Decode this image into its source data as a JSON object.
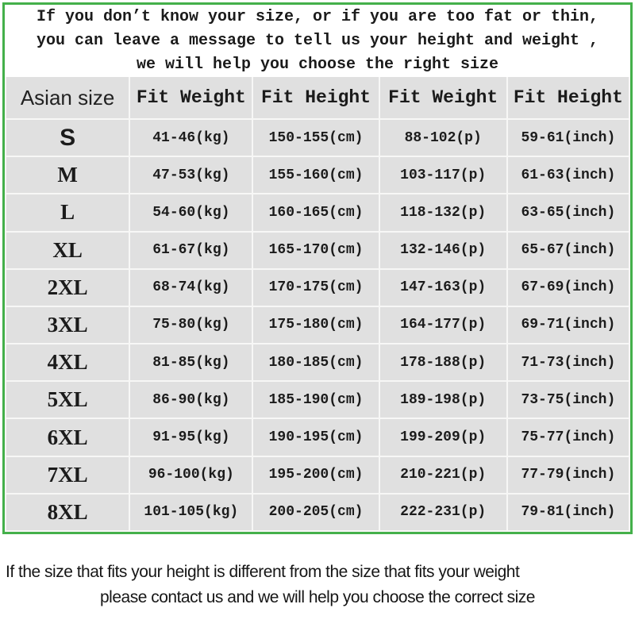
{
  "intro": {
    "lines": [
      "If you don’t know your size, or if you are too fat or thin,",
      "you can leave a message to tell us your height and weight ,",
      "we will help you choose the right size"
    ]
  },
  "chart_data": {
    "type": "table",
    "columns": [
      "Asian size",
      "Fit Weight",
      "Fit Height",
      "Fit Weight",
      "Fit Height"
    ],
    "rows": [
      [
        "S",
        "41-46(kg)",
        "150-155(cm)",
        "88-102(p)",
        "59-61(inch)"
      ],
      [
        "M",
        "47-53(kg)",
        "155-160(cm)",
        "103-117(p)",
        "61-63(inch)"
      ],
      [
        "L",
        "54-60(kg)",
        "160-165(cm)",
        "118-132(p)",
        "63-65(inch)"
      ],
      [
        "XL",
        "61-67(kg)",
        "165-170(cm)",
        "132-146(p)",
        "65-67(inch)"
      ],
      [
        "2XL",
        "68-74(kg)",
        "170-175(cm)",
        "147-163(p)",
        "67-69(inch)"
      ],
      [
        "3XL",
        "75-80(kg)",
        "175-180(cm)",
        "164-177(p)",
        "69-71(inch)"
      ],
      [
        "4XL",
        "81-85(kg)",
        "180-185(cm)",
        "178-188(p)",
        "71-73(inch)"
      ],
      [
        "5XL",
        "86-90(kg)",
        "185-190(cm)",
        "189-198(p)",
        "73-75(inch)"
      ],
      [
        "6XL",
        "91-95(kg)",
        "190-195(cm)",
        "199-209(p)",
        "75-77(inch)"
      ],
      [
        "7XL",
        "96-100(kg)",
        "195-200(cm)",
        "210-221(p)",
        "77-79(inch)"
      ],
      [
        "8XL",
        "101-105(kg)",
        "200-205(cm)",
        "222-231(p)",
        "79-81(inch)"
      ]
    ]
  },
  "footer": {
    "lines": [
      "If the size that fits your height is different from the size that fits your weight",
      "please contact us and we will help you choose the correct size"
    ]
  },
  "colors": {
    "border_green": "#44b04a",
    "cell_gray": "#e0e0e0",
    "gridline": "#f7f7f6",
    "text": "#1b1b1b"
  }
}
